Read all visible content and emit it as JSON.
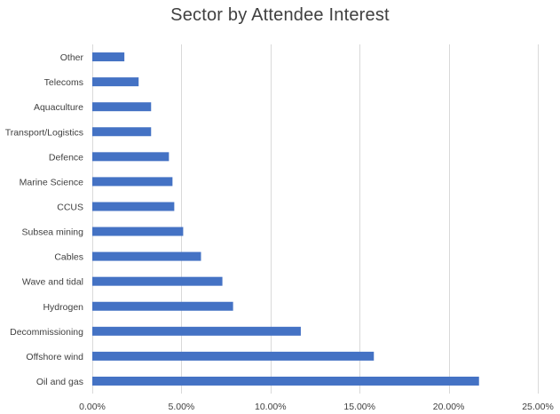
{
  "chart_data": {
    "type": "bar",
    "orientation": "horizontal",
    "title": "Sector by Attendee Interest",
    "categories": [
      "Other",
      "Telecoms",
      "Aquaculture",
      "Transport/Logistics",
      "Defence",
      "Marine Science",
      "CCUS",
      "Subsea mining",
      "Cables",
      "Wave and tidal",
      "Hydrogen",
      "Decommissioning",
      "Offshore wind",
      "Oil and gas"
    ],
    "values": [
      1.8,
      2.6,
      3.3,
      3.3,
      4.3,
      4.5,
      4.6,
      5.1,
      6.1,
      7.3,
      7.9,
      11.7,
      15.8,
      21.7
    ],
    "value_unit": "%",
    "xlim": [
      0,
      25
    ],
    "xticks": [
      "0.00%",
      "5.00%",
      "10.00%",
      "15.00%",
      "20.00%",
      "25.00%"
    ],
    "xtick_values": [
      0,
      5,
      10,
      15,
      20,
      25
    ],
    "grid": "vertical",
    "bar_color": "#4472C4",
    "grid_color": "#D9D9D9",
    "text_color": "#404040"
  }
}
